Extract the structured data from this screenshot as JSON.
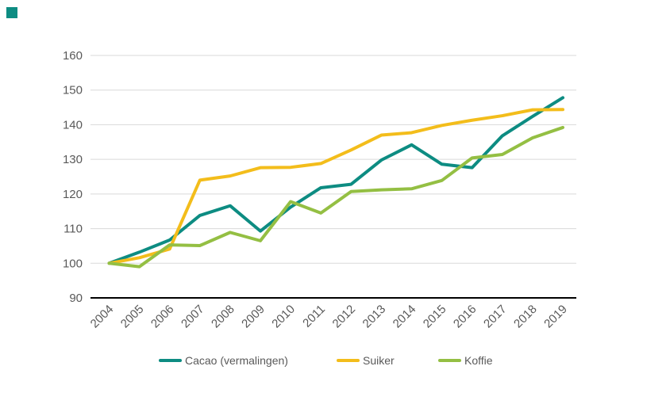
{
  "brand": {
    "corner_square_color": "#0d8c82"
  },
  "chart_data": {
    "type": "line",
    "title": "",
    "x": [
      2004,
      2005,
      2006,
      2007,
      2008,
      2009,
      2010,
      2011,
      2012,
      2013,
      2014,
      2015,
      2016,
      2017,
      2018,
      2019
    ],
    "series": [
      {
        "name": "Cacao (vermalingen)",
        "color": "#0d8c82",
        "values": [
          100,
          103.2,
          106.7,
          113.8,
          116.6,
          109.3,
          116.2,
          121.8,
          122.8,
          129.8,
          134.2,
          128.6,
          127.6,
          136.8,
          142.4,
          147.8
        ]
      },
      {
        "name": "Suiker",
        "color": "#f3bd1b",
        "values": [
          100,
          101.6,
          104.1,
          124,
          125.2,
          127.6,
          127.7,
          128.8,
          132.7,
          137,
          137.7,
          139.8,
          141.3,
          142.6,
          144.3,
          144.4
        ]
      },
      {
        "name": "Koffie",
        "color": "#94bf43",
        "values": [
          100,
          99,
          105.3,
          105.1,
          108.9,
          106.5,
          117.8,
          114.5,
          120.7,
          121.2,
          121.5,
          123.9,
          130.4,
          131.4,
          136.2,
          139.2
        ]
      }
    ],
    "ylim": [
      90,
      160
    ],
    "yticks": [
      90,
      100,
      110,
      120,
      130,
      140,
      150,
      160
    ],
    "baseline_value": 90,
    "grid": true,
    "legend_position": "bottom",
    "colors": {
      "grid": "#d9d9d9",
      "baseline": "#000000",
      "labels": "#595959"
    }
  }
}
